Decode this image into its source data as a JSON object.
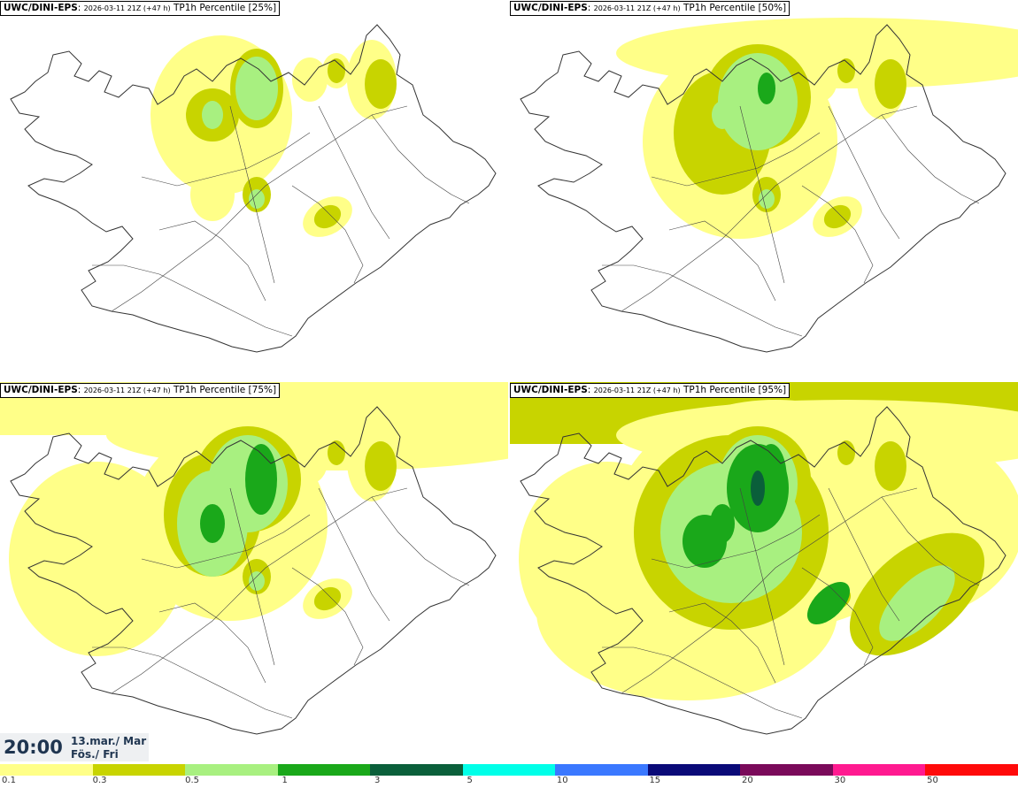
{
  "panels": [
    {
      "model": "UWC/DINI-EPS",
      "run": "2026-03-11 21Z (+47 h)",
      "field": "TP1h Percentile [25%]",
      "level": 1
    },
    {
      "model": "UWC/DINI-EPS",
      "run": "2026-03-11 21Z (+47 h)",
      "field": "TP1h Percentile [50%]",
      "level": 2
    },
    {
      "model": "UWC/DINI-EPS",
      "run": "2026-03-11 21Z (+47 h)",
      "field": "TP1h Percentile [75%]",
      "level": 3
    },
    {
      "model": "UWC/DINI-EPS",
      "run": "2026-03-11 21Z (+47 h)",
      "field": "TP1h Percentile [95%]",
      "level": 4
    }
  ],
  "valid_time": {
    "time": "20:00",
    "date_line1": "13.mar./ Mar",
    "date_line2": "Fös./ Fri"
  },
  "colorbar": {
    "colors": [
      "#ffff88",
      "#c8d400",
      "#a8f080",
      "#1aa81a",
      "#0a5f3a",
      "#00ffe8",
      "#3a78ff",
      "#0a0a78",
      "#7a0a5a",
      "#ff1a90",
      "#ff0a0a"
    ],
    "labels": [
      "0.1",
      "0.3",
      "0.5",
      "1",
      "3",
      "5",
      "10",
      "15",
      "20",
      "30",
      "50"
    ]
  },
  "colors": {
    "coast": "#333333",
    "roads": "#444444",
    "land": "#ffffff"
  }
}
